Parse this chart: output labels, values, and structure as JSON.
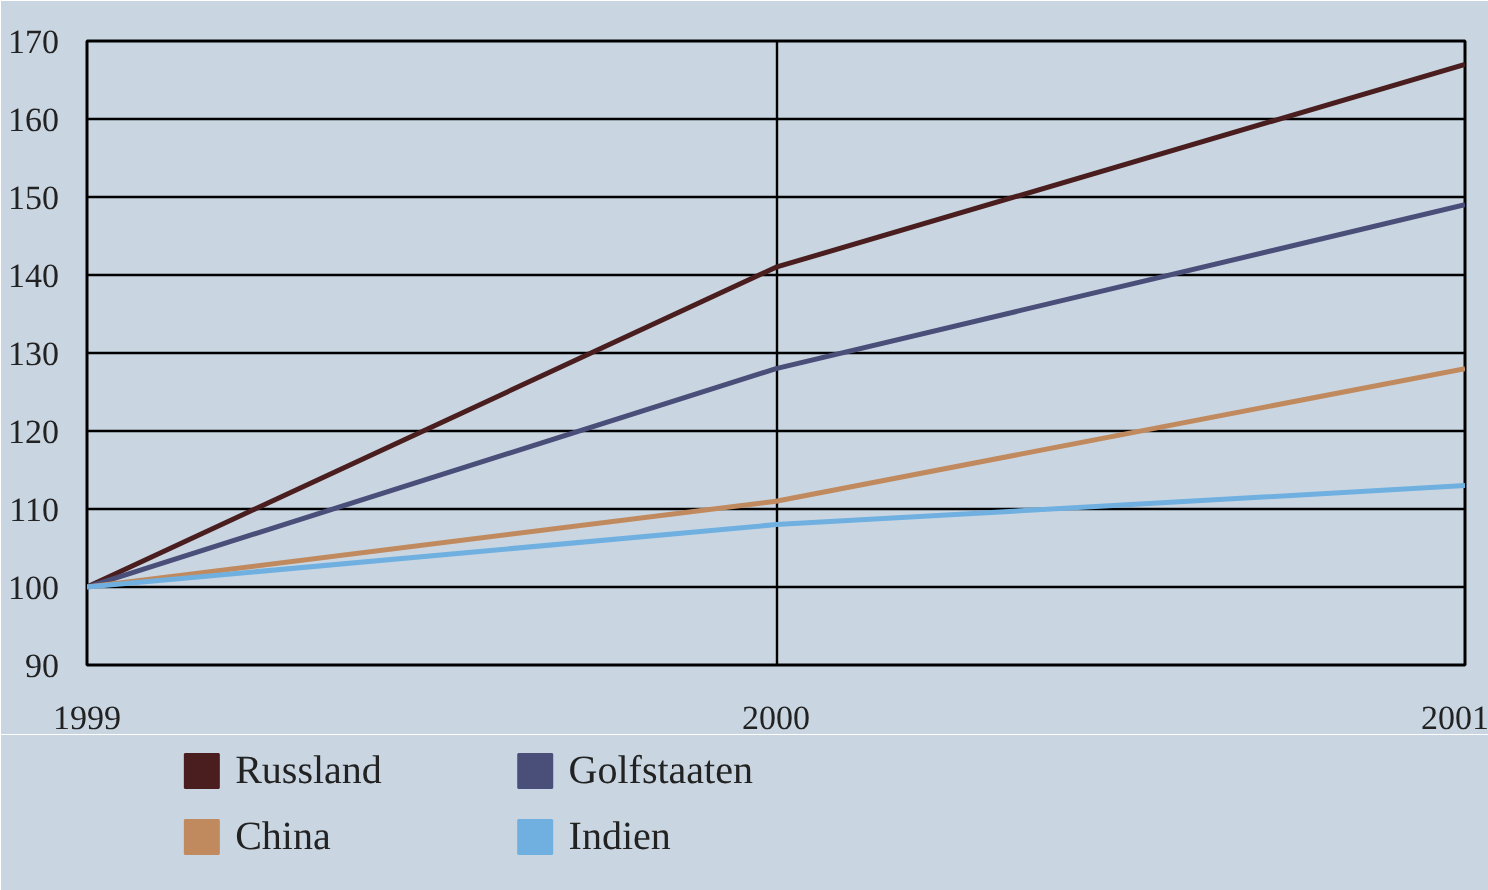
{
  "chart_data": {
    "type": "line",
    "x": [
      1999,
      2000,
      2001
    ],
    "xlim": [
      1999,
      2001
    ],
    "xticks": [
      1999,
      2000,
      2001
    ],
    "ylim": [
      90,
      170
    ],
    "yticks": [
      90,
      100,
      110,
      120,
      130,
      140,
      150,
      160,
      170
    ],
    "grid": true,
    "legend": "bottom",
    "marker": "none",
    "line_style": "solid",
    "series": [
      {
        "name": "Russland",
        "color": "#4a1e1e",
        "values": [
          100,
          141,
          167
        ]
      },
      {
        "name": "Golfstaaten",
        "color": "#4a4f7a",
        "values": [
          100,
          128,
          149
        ]
      },
      {
        "name": "China",
        "color": "#c08a5e",
        "values": [
          100,
          111,
          128
        ]
      },
      {
        "name": "Indien",
        "color": "#6fb0e0",
        "values": [
          100,
          108,
          113
        ]
      }
    ]
  }
}
